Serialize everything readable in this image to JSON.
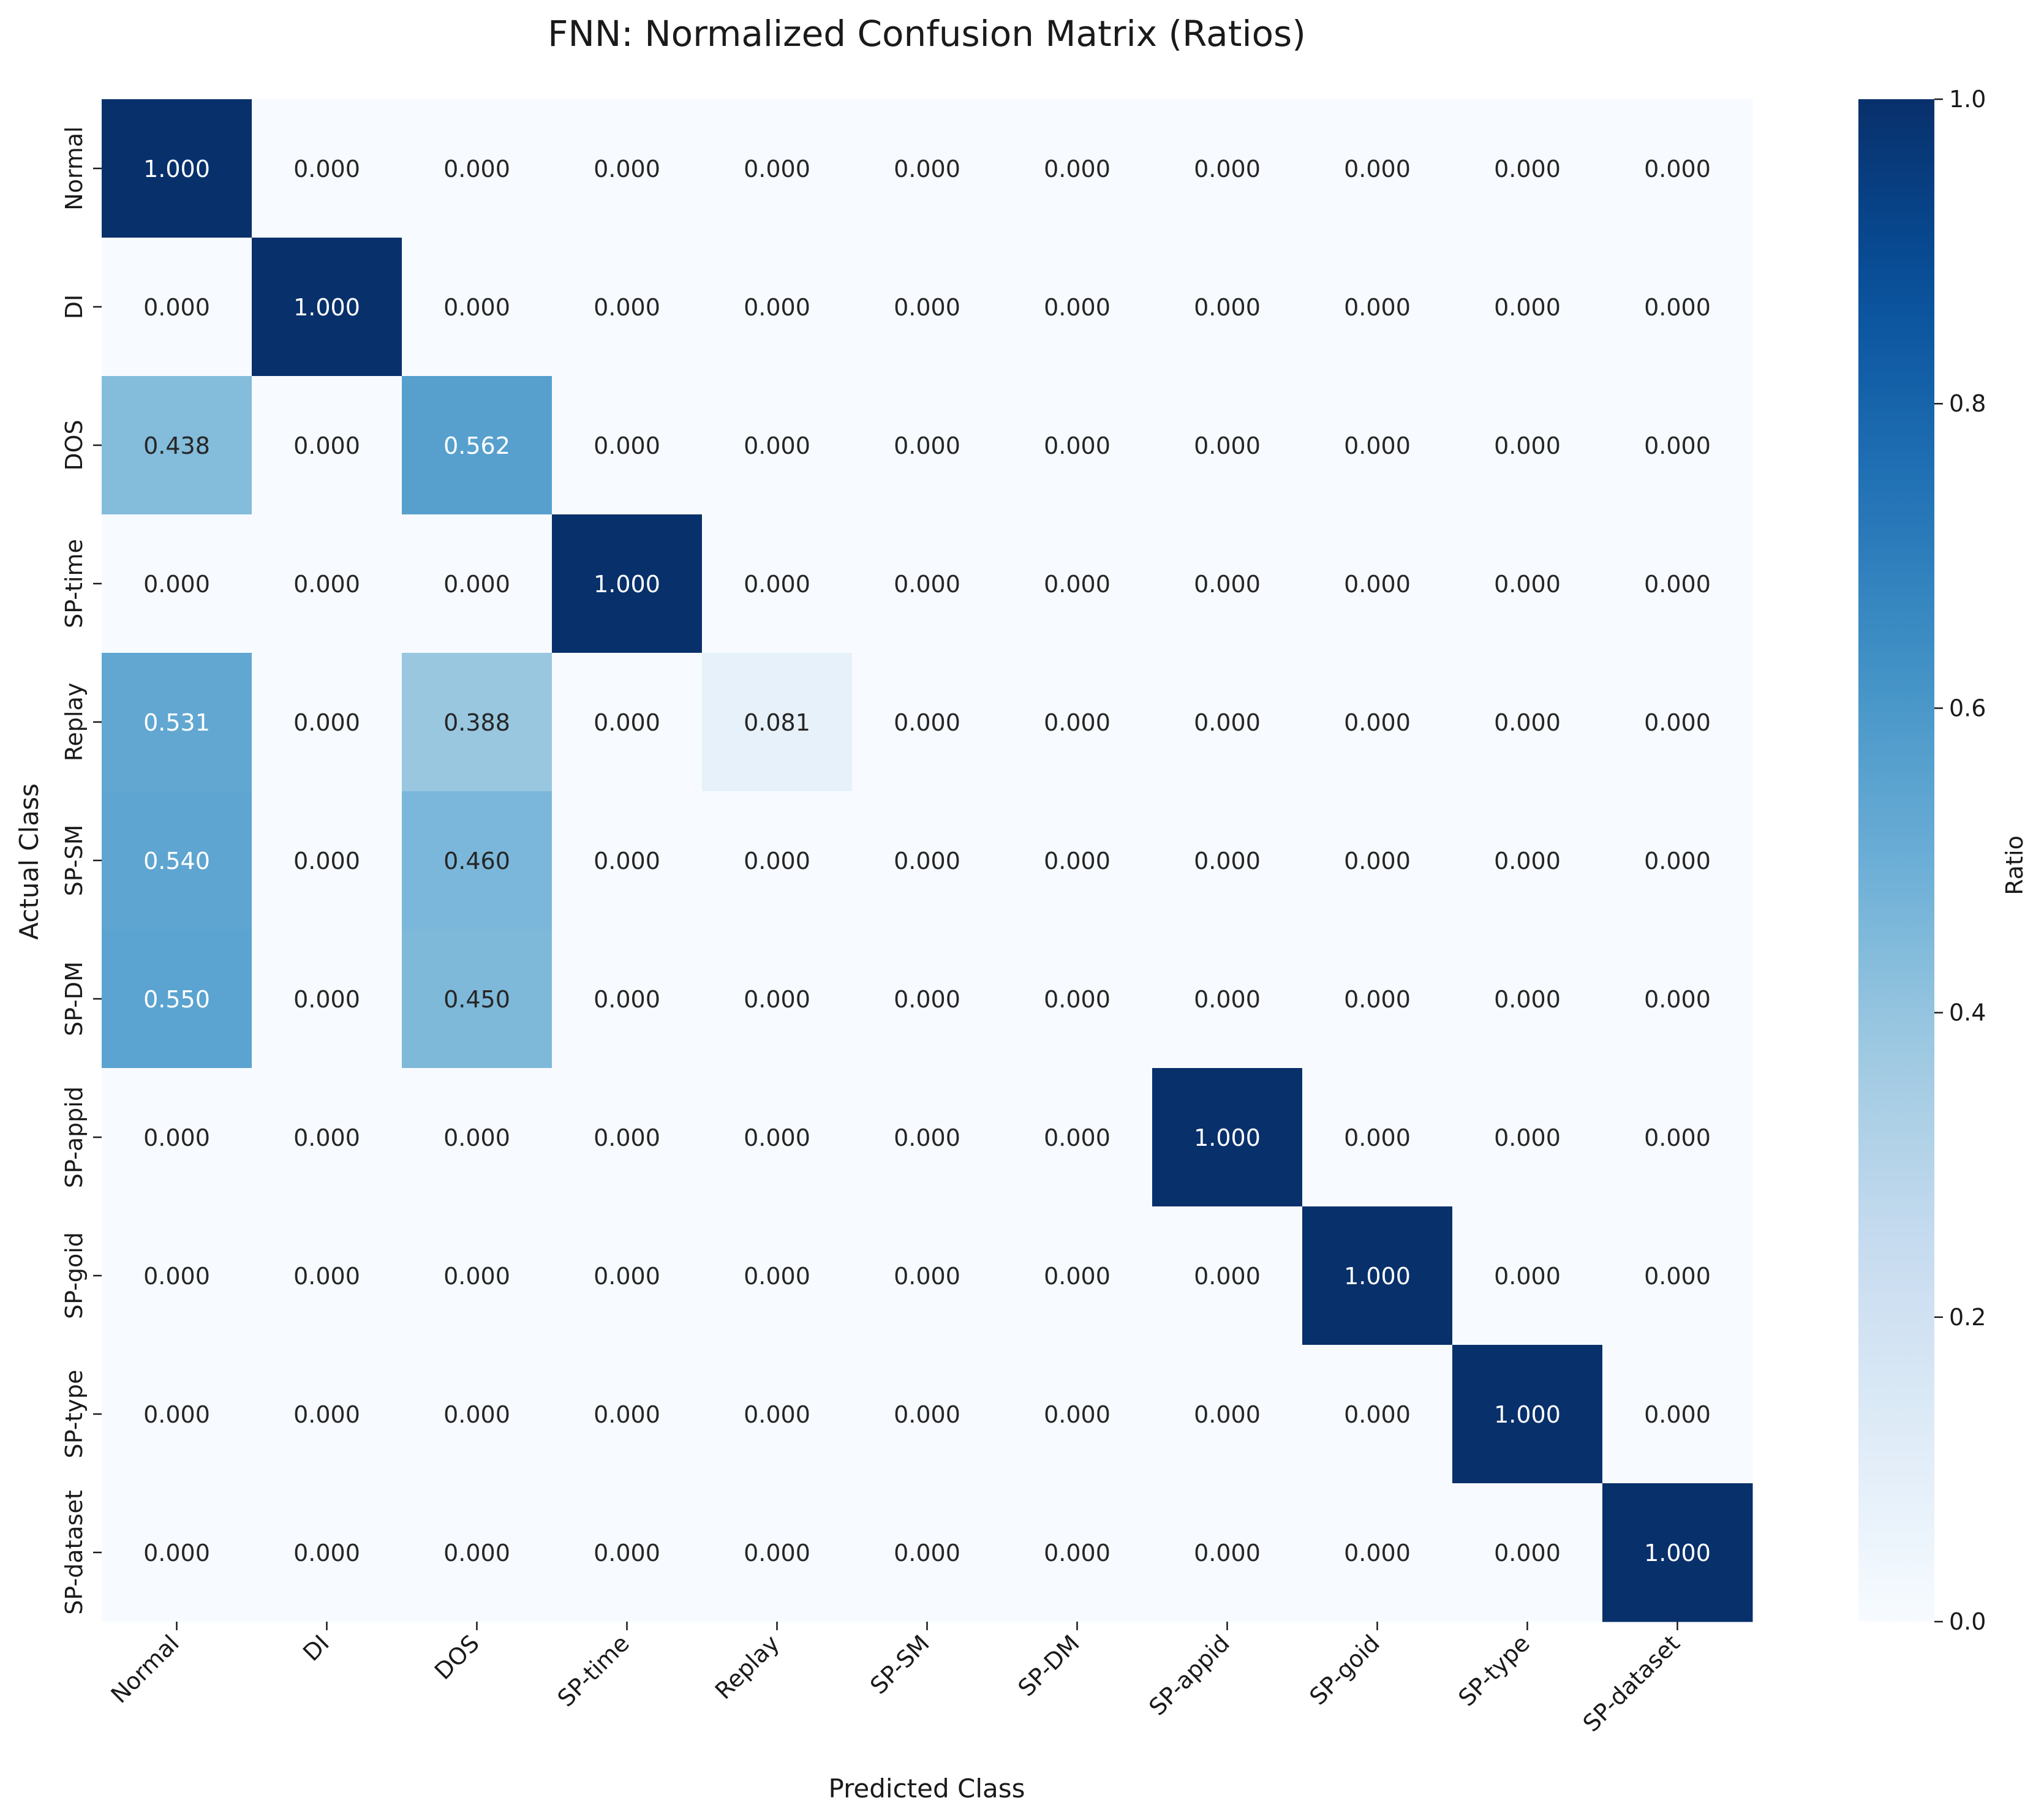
{
  "chart_data": {
    "type": "heatmap",
    "title": "FNN: Normalized Confusion Matrix (Ratios)",
    "xlabel": "Predicted Class",
    "ylabel": "Actual Class",
    "x_categories": [
      "Normal",
      "DI",
      "DOS",
      "SP-time",
      "Replay",
      "SP-SM",
      "SP-DM",
      "SP-appid",
      "SP-goid",
      "SP-type",
      "SP-dataset"
    ],
    "y_categories": [
      "Normal",
      "DI",
      "DOS",
      "SP-time",
      "Replay",
      "SP-SM",
      "SP-DM",
      "SP-appid",
      "SP-goid",
      "SP-type",
      "SP-dataset"
    ],
    "values": [
      [
        1.0,
        0.0,
        0.0,
        0.0,
        0.0,
        0.0,
        0.0,
        0.0,
        0.0,
        0.0,
        0.0
      ],
      [
        0.0,
        1.0,
        0.0,
        0.0,
        0.0,
        0.0,
        0.0,
        0.0,
        0.0,
        0.0,
        0.0
      ],
      [
        0.438,
        0.0,
        0.562,
        0.0,
        0.0,
        0.0,
        0.0,
        0.0,
        0.0,
        0.0,
        0.0
      ],
      [
        0.0,
        0.0,
        0.0,
        1.0,
        0.0,
        0.0,
        0.0,
        0.0,
        0.0,
        0.0,
        0.0
      ],
      [
        0.531,
        0.0,
        0.388,
        0.0,
        0.081,
        0.0,
        0.0,
        0.0,
        0.0,
        0.0,
        0.0
      ],
      [
        0.54,
        0.0,
        0.46,
        0.0,
        0.0,
        0.0,
        0.0,
        0.0,
        0.0,
        0.0,
        0.0
      ],
      [
        0.55,
        0.0,
        0.45,
        0.0,
        0.0,
        0.0,
        0.0,
        0.0,
        0.0,
        0.0,
        0.0
      ],
      [
        0.0,
        0.0,
        0.0,
        0.0,
        0.0,
        0.0,
        0.0,
        1.0,
        0.0,
        0.0,
        0.0
      ],
      [
        0.0,
        0.0,
        0.0,
        0.0,
        0.0,
        0.0,
        0.0,
        0.0,
        1.0,
        0.0,
        0.0
      ],
      [
        0.0,
        0.0,
        0.0,
        0.0,
        0.0,
        0.0,
        0.0,
        0.0,
        0.0,
        1.0,
        0.0
      ],
      [
        0.0,
        0.0,
        0.0,
        0.0,
        0.0,
        0.0,
        0.0,
        0.0,
        0.0,
        0.0,
        1.0
      ]
    ],
    "value_format": "3 decimals",
    "colormap": "Blues",
    "colorbar": {
      "label": "Ratio",
      "range": [
        0.0,
        1.0
      ],
      "ticks": [
        0.0,
        0.2,
        0.4,
        0.6,
        0.8,
        1.0
      ],
      "tick_labels": [
        "0.0",
        "0.2",
        "0.4",
        "0.6",
        "0.8",
        "1.0"
      ]
    },
    "grid": false
  },
  "colors": {
    "low": "#f7fbff",
    "high": "#08306b",
    "text_dark": "#262626",
    "text_light": "#ffffff"
  }
}
